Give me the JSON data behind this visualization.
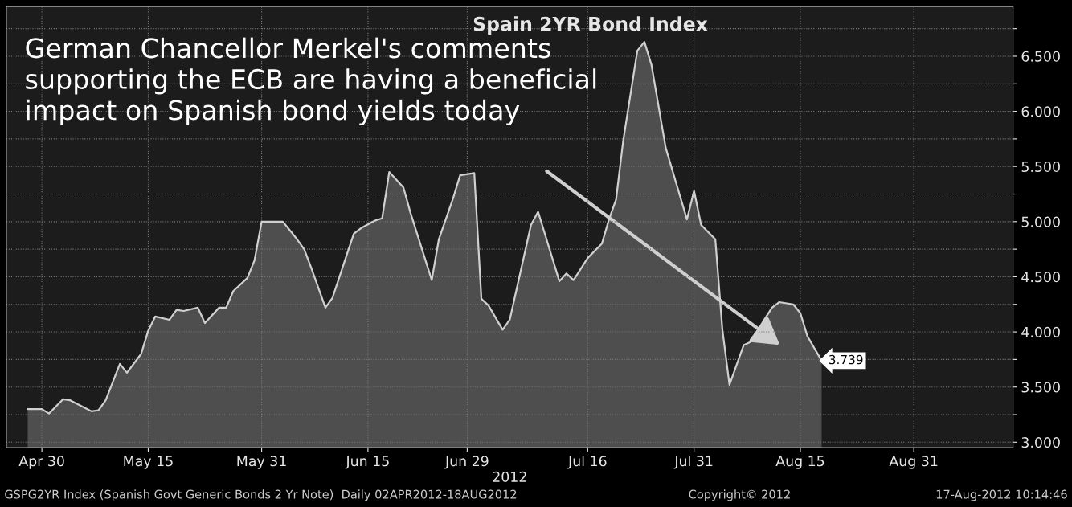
{
  "chart_data": {
    "type": "area",
    "title": "Spain 2YR Bond Index",
    "xlabel": "2012",
    "annotations": [
      "German Chancellor Merkel's comments\nsupporting the ECB are having a beneficial\nimpact on Spanish bond yields today",
      "GSPG2YR Index (Spanish Govt Generic Bonds 2 Yr Note)  Daily 02APR2012-18AUG2012",
      "Copyright© 2012",
      "17-Aug-2012 10:14:46"
    ],
    "x": [
      "2012-04-28",
      "2012-04-30",
      "2012-05-01",
      "2012-05-03",
      "2012-05-04",
      "2012-05-07",
      "2012-05-08",
      "2012-05-09",
      "2012-05-11",
      "2012-05-12",
      "2012-05-14",
      "2012-05-15",
      "2012-05-16",
      "2012-05-18",
      "2012-05-19",
      "2012-05-20",
      "2012-05-22",
      "2012-05-23",
      "2012-05-25",
      "2012-05-26",
      "2012-05-27",
      "2012-05-29",
      "2012-05-30",
      "2012-05-31",
      "2012-06-03",
      "2012-06-05",
      "2012-06-06",
      "2012-06-07",
      "2012-06-09",
      "2012-06-10",
      "2012-06-13",
      "2012-06-14",
      "2012-06-16",
      "2012-06-17",
      "2012-06-18",
      "2012-06-20",
      "2012-06-21",
      "2012-06-24",
      "2012-06-25",
      "2012-06-27",
      "2012-06-28",
      "2012-06-30",
      "2012-07-01",
      "2012-07-02",
      "2012-07-04",
      "2012-07-05",
      "2012-07-08",
      "2012-07-09",
      "2012-07-12",
      "2012-07-13",
      "2012-07-14",
      "2012-07-16",
      "2012-07-18",
      "2012-07-19",
      "2012-07-20",
      "2012-07-21",
      "2012-07-23",
      "2012-07-24",
      "2012-07-25",
      "2012-07-27",
      "2012-07-30",
      "2012-07-31",
      "2012-08-01",
      "2012-08-03",
      "2012-08-04",
      "2012-08-05",
      "2012-08-07",
      "2012-08-08",
      "2012-08-10",
      "2012-08-11",
      "2012-08-12",
      "2012-08-14",
      "2012-08-15",
      "2012-08-16",
      "2012-08-18"
    ],
    "series": [
      {
        "color": "#d0d0d0",
        "values": [
          3.3,
          3.3,
          3.26,
          3.39,
          3.38,
          3.28,
          3.29,
          3.38,
          3.71,
          3.63,
          3.8,
          4.01,
          4.14,
          4.11,
          4.2,
          4.19,
          4.22,
          4.08,
          4.22,
          4.22,
          4.37,
          4.49,
          4.65,
          5.0,
          5.0,
          4.84,
          4.75,
          4.58,
          4.22,
          4.31,
          4.89,
          4.94,
          5.01,
          5.03,
          5.45,
          5.31,
          5.08,
          4.47,
          4.84,
          5.21,
          5.42,
          5.44,
          4.3,
          4.24,
          4.02,
          4.11,
          4.97,
          5.09,
          4.46,
          4.53,
          4.47,
          4.67,
          4.8,
          5.02,
          5.2,
          5.73,
          6.55,
          6.63,
          6.42,
          5.67,
          5.02,
          5.28,
          4.97,
          4.84,
          4.02,
          3.52,
          3.88,
          3.91,
          4.12,
          4.22,
          4.27,
          4.25,
          4.17,
          3.96,
          3.739
        ],
        "value_labels": [
          null,
          null,
          null,
          null,
          null,
          null,
          null,
          null,
          null,
          null,
          null,
          null,
          null,
          null,
          null,
          null,
          null,
          null,
          null,
          null,
          null,
          null,
          null,
          null,
          null,
          null,
          null,
          null,
          null,
          null,
          null,
          null,
          null,
          null,
          null,
          null,
          null,
          null,
          null,
          null,
          null,
          null,
          null,
          null,
          null,
          null,
          null,
          null,
          null,
          null,
          null,
          null,
          null,
          null,
          null,
          null,
          null,
          null,
          null,
          null,
          null,
          null,
          null,
          null,
          null,
          null,
          null,
          null,
          null,
          null,
          null,
          null,
          null,
          null,
          "3.739"
        ]
      }
    ],
    "xlim": [
      "2012-04-25",
      "2012-09-14"
    ],
    "xticks": [
      {
        "value": "2012-04-30",
        "label": "Apr 30"
      },
      {
        "value": "2012-05-15",
        "label": "May 15"
      },
      {
        "value": "2012-05-31",
        "label": "May 31"
      },
      {
        "value": "2012-06-15",
        "label": "Jun 15"
      },
      {
        "value": "2012-06-29",
        "label": "Jun 29"
      },
      {
        "value": "2012-07-16",
        "label": "Jul 16"
      },
      {
        "value": "2012-07-31",
        "label": "Jul 31"
      },
      {
        "value": "2012-08-15",
        "label": "Aug 15"
      },
      {
        "value": "2012-08-31",
        "label": "Aug 31"
      }
    ],
    "ylim": [
      2.95,
      6.95
    ],
    "yticks": [
      {
        "value": 3,
        "label": "3.000"
      },
      {
        "value": 3.25,
        "label": null
      },
      {
        "value": 3.5,
        "label": "3.500"
      },
      {
        "value": 3.75,
        "label": null
      },
      {
        "value": 4,
        "label": "4.000"
      },
      {
        "value": 4.25,
        "label": null
      },
      {
        "value": 4.5,
        "label": "4.500"
      },
      {
        "value": 4.75,
        "label": null
      },
      {
        "value": 5,
        "label": "5.000"
      },
      {
        "value": 5.25,
        "label": null
      },
      {
        "value": 5.5,
        "label": "5.500"
      },
      {
        "value": 5.75,
        "label": null
      },
      {
        "value": 6,
        "label": "6.000"
      },
      {
        "value": 6.25,
        "label": null
      },
      {
        "value": 6.5,
        "label": "6.500"
      },
      {
        "value": 6.75,
        "label": null
      }
    ],
    "grid": true,
    "line_style": "solid"
  }
}
